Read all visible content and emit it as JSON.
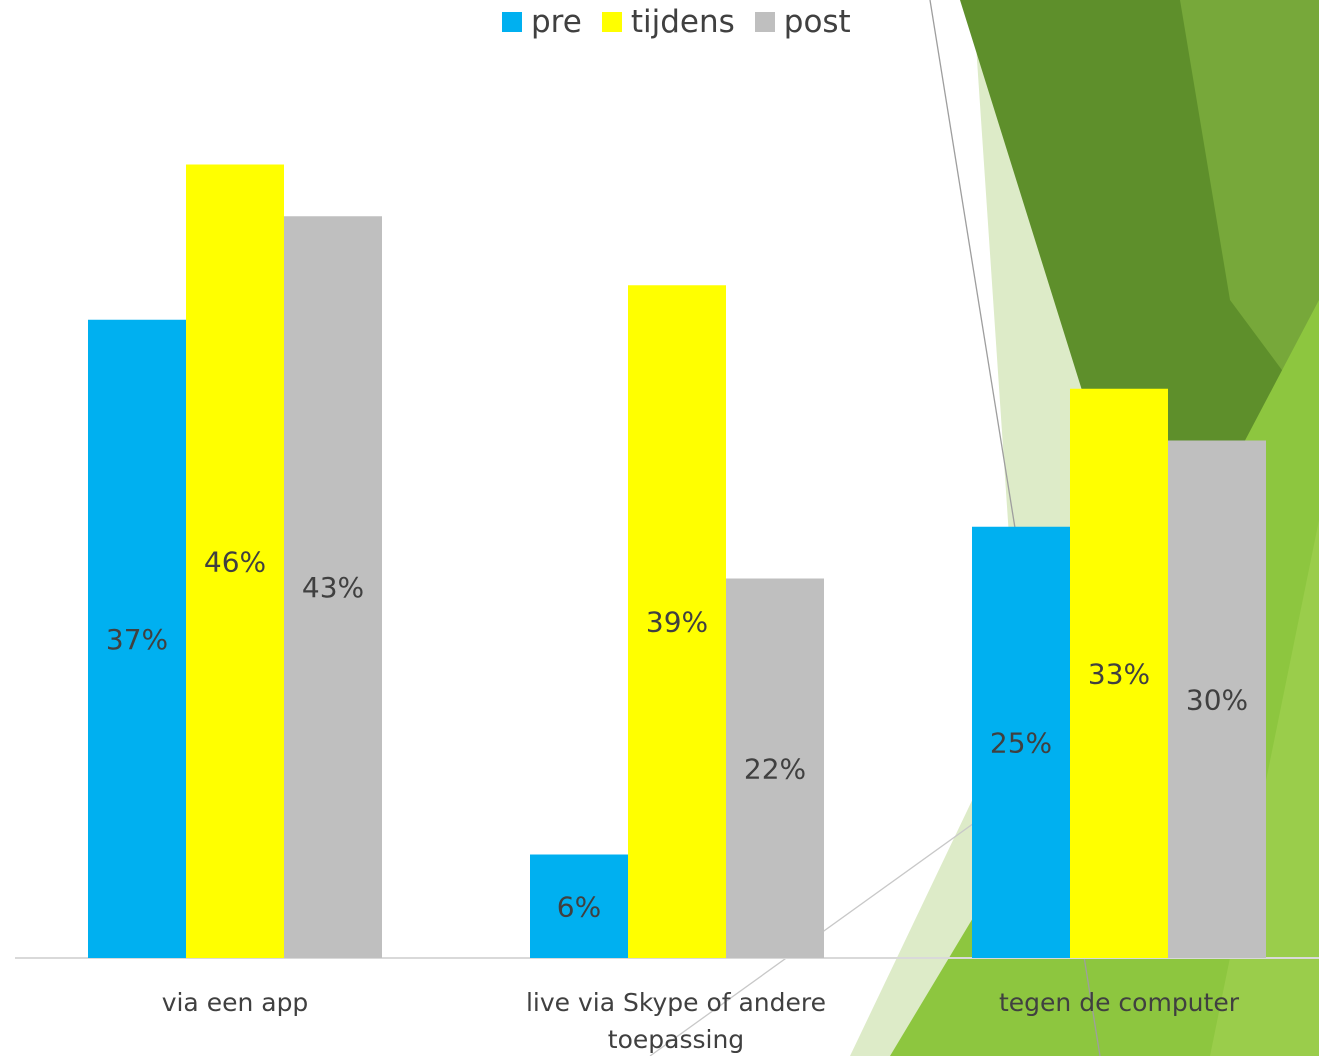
{
  "chart_data": {
    "type": "bar",
    "categories": [
      "via een app",
      "live via Skype of andere toepassing",
      "tegen de computer"
    ],
    "series": [
      {
        "name": "pre",
        "values": [
          37,
          6,
          25
        ],
        "labels": [
          "37%",
          "6%",
          "25%"
        ],
        "color": "#00B0F0"
      },
      {
        "name": "tijdens",
        "values": [
          46,
          39,
          33
        ],
        "labels": [
          "46%",
          "39%",
          "33%"
        ],
        "color": "#FFFF00"
      },
      {
        "name": "post",
        "values": [
          43,
          22,
          30
        ],
        "labels": [
          "43%",
          "22%",
          "30%"
        ],
        "color": "#BFBFBF"
      }
    ],
    "ylim": [
      0,
      50
    ],
    "grid": false,
    "legend_position": "top",
    "title": "",
    "xlabel": "",
    "ylabel": ""
  },
  "legend": {
    "pre": "pre",
    "tijdens": "tijdens",
    "post": "post"
  },
  "categories_text": {
    "cat0": "via een app",
    "cat1_line1": "live via Skype of andere",
    "cat1_line2": "toepassing",
    "cat2": "tegen de computer"
  },
  "theme": {
    "green_dark": "#5E8F2B",
    "green_light": "#8DC63F",
    "green_pale": "#DDEBC8"
  }
}
